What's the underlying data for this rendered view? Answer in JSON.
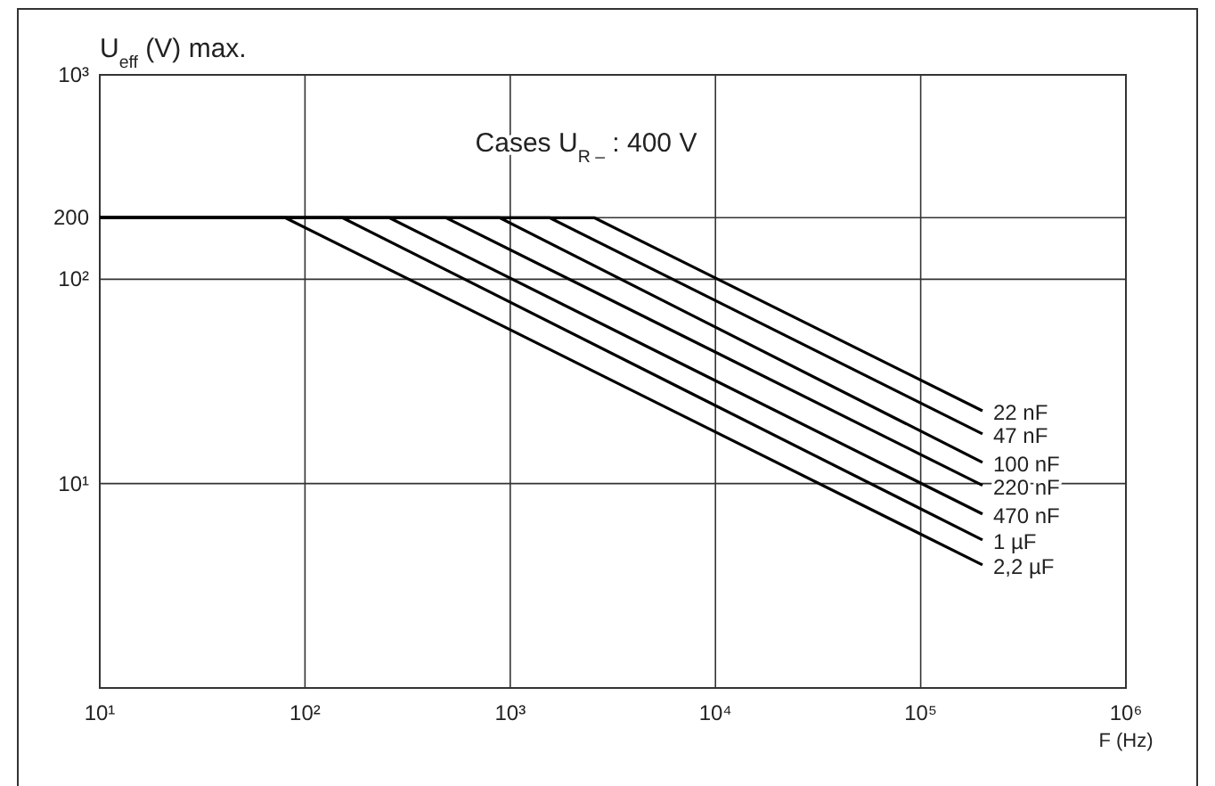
{
  "chart_data": {
    "type": "line",
    "ylabel": "U$_{eff}$ (V) max.",
    "xlabel": "F (Hz)",
    "annotations": [
      "Cases U$_{R –}$ : 400 V"
    ],
    "log": "xy",
    "grid": true,
    "xlim": [
      10,
      1000000
    ],
    "xticks": [
      {
        "value": 10,
        "label": "10¹"
      },
      {
        "value": 100,
        "label": "10²"
      },
      {
        "value": 1000,
        "label": "10³"
      },
      {
        "value": 10000,
        "label": "10⁴"
      },
      {
        "value": 100000,
        "label": "10⁵"
      },
      {
        "value": 1000000,
        "label": "10⁶"
      }
    ],
    "ylim": [
      1,
      1000
    ],
    "yticks": [
      {
        "value": 1,
        "label": null
      },
      {
        "value": 10,
        "label": "10¹"
      },
      {
        "value": 100,
        "label": "10²"
      },
      200,
      {
        "value": 1000,
        "label": "10³"
      }
    ],
    "series": [
      {
        "name": "22 nF",
        "color": "#000000",
        "x": [
          10,
          2565,
          200000
        ],
        "values": [
          200,
          200,
          22.7
        ]
      },
      {
        "name": "47 nF",
        "color": "#000000",
        "x": [
          10,
          1553,
          200000
        ],
        "values": [
          200,
          200,
          17.5
        ]
      },
      {
        "name": "100 nF",
        "color": "#000000",
        "x": [
          10,
          887,
          200000
        ],
        "values": [
          200,
          200,
          12.7
        ]
      },
      {
        "name": "220 nF",
        "color": "#000000",
        "x": [
          10,
          486,
          200000
        ],
        "values": [
          200,
          200,
          9.8
        ]
      },
      {
        "name": "470 nF",
        "color": "#000000",
        "x": [
          10,
          257,
          200000
        ],
        "values": [
          200,
          200,
          7.1
        ]
      },
      {
        "name": "1 µF",
        "color": "#000000",
        "x": [
          10,
          152,
          200000
        ],
        "values": [
          200,
          200,
          5.3
        ]
      },
      {
        "name": "2,2 µF",
        "color": "#000000",
        "x": [
          10,
          80,
          200000
        ],
        "values": [
          200,
          200,
          4.0
        ]
      }
    ]
  }
}
